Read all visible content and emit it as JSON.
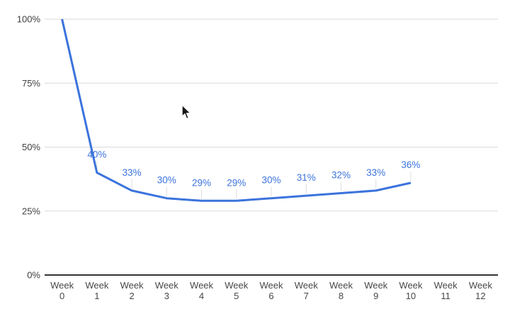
{
  "page": {
    "background": "#FFFFFF"
  },
  "chart_data": {
    "type": "line",
    "title": "",
    "xlabel": "",
    "ylabel": "",
    "categories": [
      "Week 0",
      "Week 1",
      "Week 2",
      "Week 3",
      "Week 4",
      "Week 5",
      "Week 6",
      "Week 7",
      "Week 8",
      "Week 9",
      "Week 10",
      "Week 11",
      "Week 12"
    ],
    "values": [
      100,
      40,
      33,
      30,
      29,
      29,
      30,
      31,
      32,
      33,
      36,
      null,
      null
    ],
    "point_labels": [
      "",
      "40%",
      "33%",
      "30%",
      "29%",
      "29%",
      "30%",
      "31%",
      "32%",
      "33%",
      "36%",
      "",
      ""
    ],
    "y_ticks": [
      {
        "value": 0,
        "label": "0%"
      },
      {
        "value": 25,
        "label": "25%"
      },
      {
        "value": 50,
        "label": "50%"
      },
      {
        "value": 75,
        "label": "75%"
      },
      {
        "value": 100,
        "label": "100%"
      }
    ],
    "ylim": [
      0,
      100
    ],
    "grid": true,
    "legend": "none",
    "colors": {
      "line": "#3B73DC",
      "point_label": "#3B73DC",
      "gridline": "#DADADA",
      "axis_line": "#333333",
      "y_tick_label": "#404040",
      "x_tick_label": "#474747",
      "label_stem": "#DDDDDD"
    }
  },
  "cursor": {
    "visible": true,
    "kind": "arrow-pointer"
  }
}
